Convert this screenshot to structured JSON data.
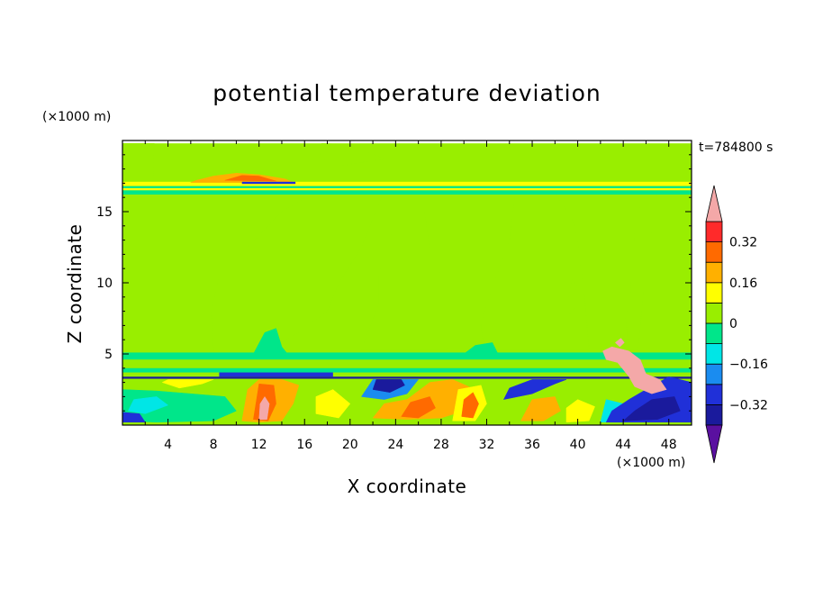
{
  "chart_data": {
    "type": "heatmap",
    "title": "potential temperature deviation",
    "xlabel": "X coordinate",
    "ylabel": "Z coordinate",
    "x_unit": "(×1000 m)",
    "y_unit": "(×1000 m)",
    "time_label": "t=784800 s",
    "xlim": [
      0,
      50
    ],
    "ylim": [
      0,
      20
    ],
    "x_ticks": [
      4,
      8,
      12,
      16,
      20,
      24,
      28,
      32,
      36,
      40,
      44,
      48
    ],
    "y_ticks": [
      5,
      10,
      15
    ],
    "colorbar": {
      "levels": [
        -0.4,
        -0.32,
        -0.24,
        -0.16,
        -0.08,
        0,
        0.08,
        0.16,
        0.24,
        0.32,
        0.4
      ],
      "colors": [
        "#5a10a0",
        "#1a1a9c",
        "#2030d8",
        "#1a8cf0",
        "#00e6e6",
        "#00e68a",
        "#99ee00",
        "#ffff00",
        "#ffb000",
        "#ff6a00",
        "#ff2a2a",
        "#f4a8a8"
      ],
      "tick_labels": [
        "0.32",
        "0.16",
        "0",
        "−0.16",
        "−0.32"
      ],
      "tick_values": [
        0.32,
        0.16,
        0,
        -0.16,
        -0.32
      ]
    },
    "regions": [
      {
        "level": 0.04,
        "shape": "rect",
        "x": [
          0,
          50
        ],
        "y": [
          0.0,
          19.8
        ]
      },
      {
        "level": 0.04,
        "shape": "blob",
        "points": [
          [
            2.8,
            19.8
          ],
          [
            2.7,
            17.5
          ],
          [
            1.5,
            16.6
          ],
          [
            0,
            16.6
          ],
          [
            0,
            19.8
          ]
        ]
      },
      {
        "level": 0.04,
        "shape": "blob",
        "points": [
          [
            17,
            16.4
          ],
          [
            14,
            15
          ],
          [
            11,
            12.5
          ],
          [
            8.5,
            10.5
          ],
          [
            7.8,
            8
          ],
          [
            8,
            5.2
          ],
          [
            10,
            5
          ],
          [
            13,
            5.4
          ],
          [
            15.5,
            6.5
          ],
          [
            18,
            8
          ],
          [
            19,
            10
          ],
          [
            21,
            12.5
          ],
          [
            22,
            14.5
          ],
          [
            23,
            16.4
          ]
        ]
      },
      {
        "level": 0.04,
        "shape": "blob",
        "points": [
          [
            17.5,
            19.8
          ],
          [
            20,
            19.7
          ],
          [
            23,
            18.7
          ],
          [
            19,
            18.2
          ],
          [
            17.3,
            18.8
          ]
        ]
      },
      {
        "level": 0.04,
        "shape": "blob",
        "points": [
          [
            21,
            5.3
          ],
          [
            22.5,
            8.5
          ],
          [
            22.5,
            10.5
          ],
          [
            23.8,
            13.8
          ],
          [
            25,
            14.8
          ],
          [
            26.5,
            15.1
          ],
          [
            27,
            12.5
          ],
          [
            28,
            11
          ],
          [
            27.5,
            9.5
          ],
          [
            28,
            7.5
          ],
          [
            29,
            6
          ],
          [
            28.5,
            5.3
          ]
        ]
      },
      {
        "level": 0.04,
        "shape": "blob",
        "points": [
          [
            31.8,
            5.3
          ],
          [
            31.5,
            7
          ],
          [
            32,
            8.5
          ],
          [
            34,
            13
          ],
          [
            34.5,
            16.2
          ],
          [
            38,
            16.3
          ],
          [
            39.5,
            14.5
          ],
          [
            40,
            13
          ],
          [
            40.6,
            9
          ],
          [
            41,
            5.3
          ]
        ]
      },
      {
        "level": 0.04,
        "shape": "blob",
        "points": [
          [
            44.5,
            5.3
          ],
          [
            44.2,
            7.5
          ],
          [
            44.6,
            9
          ],
          [
            45,
            13.5
          ],
          [
            45.5,
            15
          ],
          [
            45.2,
            16.2
          ],
          [
            47,
            16.3
          ],
          [
            46.5,
            13.5
          ],
          [
            45.8,
            9.5
          ],
          [
            45.3,
            5.3
          ]
        ]
      },
      {
        "level": 0.04,
        "shape": "blob",
        "points": [
          [
            39.3,
            7.8
          ],
          [
            39.2,
            9
          ],
          [
            39.5,
            10.2
          ],
          [
            39.9,
            9.8
          ],
          [
            39.7,
            8.2
          ]
        ]
      },
      {
        "level": -0.04,
        "shape": "rect",
        "x": [
          0,
          50
        ],
        "y": [
          4.6,
          5.1
        ]
      },
      {
        "level": 0.04,
        "shape": "rect",
        "x": [
          0,
          50
        ],
        "y": [
          4.0,
          4.6
        ]
      },
      {
        "level": -0.04,
        "shape": "rect",
        "x": [
          0,
          50
        ],
        "y": [
          3.7,
          4.0
        ]
      },
      {
        "level": -0.04,
        "shape": "blob",
        "points": [
          [
            11.5,
            5
          ],
          [
            12.5,
            6.5
          ],
          [
            13.5,
            6.8
          ],
          [
            14,
            5.5
          ],
          [
            14.5,
            5
          ]
        ]
      },
      {
        "level": -0.04,
        "shape": "blob",
        "points": [
          [
            30,
            5
          ],
          [
            31,
            5.6
          ],
          [
            32.5,
            5.8
          ],
          [
            33,
            5
          ]
        ]
      },
      {
        "level": -0.04,
        "shape": "rect",
        "x": [
          0,
          50
        ],
        "y": [
          16.2,
          16.8
        ]
      },
      {
        "level": 0.12,
        "shape": "rect",
        "x": [
          0,
          50
        ],
        "y": [
          16.8,
          17.1
        ]
      },
      {
        "level": 0.2,
        "shape": "blob",
        "points": [
          [
            6.5,
            17.2
          ],
          [
            8,
            17.5
          ],
          [
            10,
            17.7
          ],
          [
            12,
            17.6
          ],
          [
            14.3,
            17.3
          ],
          [
            15,
            17.05
          ],
          [
            6,
            17.05
          ]
        ]
      },
      {
        "level": 0.28,
        "shape": "blob",
        "points": [
          [
            9,
            17.2
          ],
          [
            10.5,
            17.55
          ],
          [
            12,
            17.5
          ],
          [
            13.5,
            17.15
          ]
        ]
      },
      {
        "level": -0.28,
        "shape": "rect",
        "x": [
          10.5,
          15.2
        ],
        "y": [
          16.95,
          17.1
        ]
      },
      {
        "level": 0.12,
        "shape": "rect",
        "x": [
          0,
          50
        ],
        "y": [
          16.5,
          16.65
        ]
      },
      {
        "level": -0.28,
        "shape": "rect",
        "x": [
          8.5,
          18.5
        ],
        "y": [
          3.4,
          3.7
        ]
      },
      {
        "level": -0.36,
        "shape": "rect",
        "x": [
          0,
          50
        ],
        "y": [
          3.25,
          3.4
        ]
      },
      {
        "level": 0.04,
        "shape": "rect",
        "x": [
          0,
          50
        ],
        "y": [
          0,
          3.25
        ]
      },
      {
        "level": -0.04,
        "shape": "blob",
        "points": [
          [
            0,
            0.3
          ],
          [
            3,
            0.2
          ],
          [
            8,
            0.3
          ],
          [
            10,
            1
          ],
          [
            9,
            2
          ],
          [
            6,
            2.2
          ],
          [
            3,
            2.4
          ],
          [
            0,
            2.5
          ]
        ]
      },
      {
        "level": -0.12,
        "shape": "blob",
        "points": [
          [
            0.5,
            1
          ],
          [
            2,
            0.8
          ],
          [
            4,
            1.4
          ],
          [
            3,
            2
          ],
          [
            1,
            1.8
          ]
        ]
      },
      {
        "level": -0.28,
        "shape": "blob",
        "points": [
          [
            0,
            0.2
          ],
          [
            2,
            0.2
          ],
          [
            1.5,
            0.8
          ],
          [
            0,
            0.9
          ]
        ]
      },
      {
        "level": 0.12,
        "shape": "blob",
        "points": [
          [
            3.5,
            3
          ],
          [
            5,
            2.6
          ],
          [
            7,
            2.9
          ],
          [
            8,
            3.2
          ],
          [
            4,
            3.2
          ]
        ]
      },
      {
        "level": 0.2,
        "shape": "blob",
        "points": [
          [
            10.5,
            0.3
          ],
          [
            12,
            0.2
          ],
          [
            14,
            0.3
          ],
          [
            15,
            1.5
          ],
          [
            15.5,
            2.8
          ],
          [
            14,
            3.2
          ],
          [
            12,
            3.2
          ],
          [
            11,
            2.5
          ]
        ]
      },
      {
        "level": 0.28,
        "shape": "blob",
        "points": [
          [
            11.5,
            0.4
          ],
          [
            12.8,
            0.3
          ],
          [
            13.5,
            1.5
          ],
          [
            13.3,
            2.8
          ],
          [
            12,
            2.9
          ]
        ]
      },
      {
        "level": 0.4,
        "shape": "blob",
        "points": [
          [
            12,
            0.4
          ],
          [
            12.7,
            0.4
          ],
          [
            12.9,
            1.5
          ],
          [
            12.5,
            2
          ],
          [
            12.1,
            1.5
          ]
        ]
      },
      {
        "level": 0.12,
        "shape": "blob",
        "points": [
          [
            17,
            0.8
          ],
          [
            19,
            0.5
          ],
          [
            20,
            1.5
          ],
          [
            18.5,
            2.5
          ],
          [
            17,
            2
          ]
        ]
      },
      {
        "level": -0.2,
        "shape": "blob",
        "points": [
          [
            21,
            2
          ],
          [
            23,
            1.8
          ],
          [
            25,
            2.2
          ],
          [
            26,
            3.2
          ],
          [
            22,
            3.2
          ]
        ]
      },
      {
        "level": -0.36,
        "shape": "blob",
        "points": [
          [
            22,
            2.5
          ],
          [
            23.5,
            2.3
          ],
          [
            24.8,
            2.8
          ],
          [
            24.5,
            3.2
          ],
          [
            22.3,
            3.2
          ]
        ]
      },
      {
        "level": 0.2,
        "shape": "blob",
        "points": [
          [
            22,
            0.5
          ],
          [
            25,
            0.4
          ],
          [
            28,
            0.5
          ],
          [
            30,
            1
          ],
          [
            31,
            2.5
          ],
          [
            29,
            3.2
          ],
          [
            27,
            3
          ],
          [
            25,
            1.8
          ],
          [
            23,
            1.5
          ]
        ]
      },
      {
        "level": 0.28,
        "shape": "blob",
        "points": [
          [
            24.5,
            0.6
          ],
          [
            26,
            0.5
          ],
          [
            27.5,
            1.2
          ],
          [
            27,
            2
          ],
          [
            25.3,
            1.6
          ]
        ]
      },
      {
        "level": 0.12,
        "shape": "blob",
        "points": [
          [
            29,
            0.3
          ],
          [
            31,
            0.3
          ],
          [
            32,
            1.5
          ],
          [
            31.5,
            2.8
          ],
          [
            29.5,
            2.5
          ]
        ]
      },
      {
        "level": 0.28,
        "shape": "blob",
        "points": [
          [
            29.8,
            0.6
          ],
          [
            30.8,
            0.5
          ],
          [
            31.3,
            1.5
          ],
          [
            30.8,
            2.3
          ],
          [
            30,
            1.8
          ]
        ]
      },
      {
        "level": -0.28,
        "shape": "blob",
        "points": [
          [
            33.5,
            1.8
          ],
          [
            36,
            2.2
          ],
          [
            38,
            2.9
          ],
          [
            39,
            3.2
          ],
          [
            36,
            3.2
          ],
          [
            34,
            2.6
          ]
        ]
      },
      {
        "level": 0.2,
        "shape": "blob",
        "points": [
          [
            35,
            0.3
          ],
          [
            37,
            0.3
          ],
          [
            38.5,
            1
          ],
          [
            38,
            2
          ],
          [
            36,
            1.8
          ]
        ]
      },
      {
        "level": 0.12,
        "shape": "blob",
        "points": [
          [
            39,
            0.2
          ],
          [
            41,
            0.3
          ],
          [
            41.5,
            1.3
          ],
          [
            40,
            1.8
          ],
          [
            39,
            1.2
          ]
        ]
      },
      {
        "level": -0.12,
        "shape": "blob",
        "points": [
          [
            42,
            0.2
          ],
          [
            44,
            0.2
          ],
          [
            44,
            1.5
          ],
          [
            42.5,
            1.8
          ]
        ]
      },
      {
        "level": -0.28,
        "shape": "blob",
        "points": [
          [
            42.5,
            0.2
          ],
          [
            46,
            0.2
          ],
          [
            50,
            0.2
          ],
          [
            50,
            3
          ],
          [
            48,
            3.4
          ],
          [
            46,
            2.5
          ],
          [
            44.5,
            1.8
          ],
          [
            43,
            1
          ]
        ]
      },
      {
        "level": -0.36,
        "shape": "blob",
        "points": [
          [
            44,
            0.3
          ],
          [
            47,
            0.4
          ],
          [
            49,
            1
          ],
          [
            48.5,
            2
          ],
          [
            46.5,
            1.8
          ],
          [
            45,
            1
          ]
        ]
      },
      {
        "level": 0.4,
        "shape": "blob",
        "points": [
          [
            42.2,
            5.2
          ],
          [
            43,
            5.5
          ],
          [
            44.5,
            5.2
          ],
          [
            45.5,
            4.6
          ],
          [
            46,
            3.6
          ],
          [
            47.2,
            3.2
          ],
          [
            47.8,
            2.5
          ],
          [
            46.5,
            2.2
          ],
          [
            45,
            2.7
          ],
          [
            44.5,
            3.4
          ],
          [
            43.5,
            4.4
          ],
          [
            42.5,
            4.6
          ]
        ]
      },
      {
        "level": 0.4,
        "shape": "blob",
        "points": [
          [
            43.3,
            5.8
          ],
          [
            43.8,
            6.1
          ],
          [
            44.1,
            5.8
          ],
          [
            43.7,
            5.5
          ]
        ]
      }
    ]
  }
}
